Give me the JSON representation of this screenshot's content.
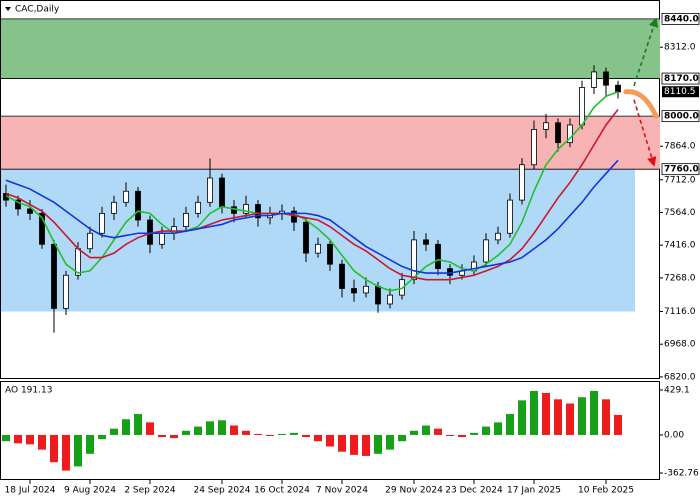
{
  "chart_data": {
    "type": "candlestick",
    "title": "CAC,Daily",
    "ylim": [
      6815,
      8521
    ],
    "yticks": [
      {
        "value": 8312,
        "label": "8312.0"
      },
      {
        "value": 7864,
        "label": "7864.0"
      },
      {
        "value": 7712,
        "label": "7712.0"
      },
      {
        "value": 7564,
        "label": "7564.0"
      },
      {
        "value": 7416,
        "label": "7416.0"
      },
      {
        "value": 7268,
        "label": "7268.0"
      },
      {
        "value": 7116,
        "label": "7116.0"
      },
      {
        "value": 6968,
        "label": "6968.0"
      },
      {
        "value": 6820,
        "label": "6820.0"
      }
    ],
    "levels": [
      {
        "value": 8440,
        "label": "8440.0"
      },
      {
        "value": 8170,
        "label": "8170.0"
      },
      {
        "value": 8000,
        "label": "8000.0"
      },
      {
        "value": 7760,
        "label": "7760.0"
      }
    ],
    "current_price": {
      "value": 8110.5,
      "label": "8110.5"
    },
    "zones": [
      {
        "from": 8170,
        "to": 8440,
        "color": "#86c38b"
      },
      {
        "from": 7760,
        "to": 8000,
        "color": "#f8b4b4"
      },
      {
        "from": 7116,
        "to": 7760,
        "color": "#b0d9f8"
      }
    ],
    "categories": [
      null,
      null,
      "18 Jul 2024",
      null,
      null,
      null,
      null,
      "9 Aug 2024",
      null,
      null,
      null,
      null,
      "2 Sep 2024",
      null,
      null,
      null,
      null,
      null,
      "24 Sep 2024",
      null,
      null,
      null,
      null,
      "16 Oct 2024",
      null,
      null,
      null,
      null,
      "7 Nov 2024",
      null,
      null,
      null,
      null,
      null,
      "29 Nov 2024",
      null,
      null,
      null,
      null,
      "23 Dec 2024",
      null,
      null,
      null,
      null,
      "17 Jan 2025",
      null,
      null,
      null,
      null,
      null,
      "10 Feb 2025",
      null
    ],
    "ohlc": [
      [
        7650,
        7690,
        7590,
        7620
      ],
      [
        7620,
        7640,
        7550,
        7580
      ],
      [
        7580,
        7620,
        7530,
        7560
      ],
      [
        7560,
        7580,
        7400,
        7420
      ],
      [
        7420,
        7440,
        7020,
        7130
      ],
      [
        7130,
        7300,
        7100,
        7280
      ],
      [
        7280,
        7430,
        7260,
        7400
      ],
      [
        7400,
        7500,
        7380,
        7470
      ],
      [
        7470,
        7590,
        7450,
        7560
      ],
      [
        7560,
        7640,
        7530,
        7610
      ],
      [
        7610,
        7700,
        7590,
        7660
      ],
      [
        7660,
        7680,
        7500,
        7530
      ],
      [
        7530,
        7550,
        7380,
        7420
      ],
      [
        7420,
        7500,
        7400,
        7470
      ],
      [
        7470,
        7540,
        7440,
        7500
      ],
      [
        7500,
        7590,
        7480,
        7560
      ],
      [
        7560,
        7640,
        7540,
        7610
      ],
      [
        7610,
        7808,
        7590,
        7720
      ],
      [
        7720,
        7740,
        7560,
        7590
      ],
      [
        7590,
        7620,
        7520,
        7560
      ],
      [
        7560,
        7640,
        7540,
        7600
      ],
      [
        7600,
        7620,
        7500,
        7540
      ],
      [
        7540,
        7590,
        7510,
        7560
      ],
      [
        7560,
        7600,
        7530,
        7570
      ],
      [
        7570,
        7590,
        7480,
        7520
      ],
      [
        7520,
        7540,
        7340,
        7380
      ],
      [
        7380,
        7450,
        7360,
        7420
      ],
      [
        7420,
        7440,
        7300,
        7330
      ],
      [
        7330,
        7350,
        7180,
        7220
      ],
      [
        7220,
        7260,
        7160,
        7200
      ],
      [
        7200,
        7270,
        7180,
        7230
      ],
      [
        7230,
        7250,
        7110,
        7150
      ],
      [
        7150,
        7220,
        7130,
        7190
      ],
      [
        7190,
        7290,
        7170,
        7260
      ],
      [
        7260,
        7480,
        7240,
        7440
      ],
      [
        7440,
        7470,
        7390,
        7420
      ],
      [
        7420,
        7440,
        7280,
        7310
      ],
      [
        7310,
        7330,
        7240,
        7280
      ],
      [
        7280,
        7330,
        7260,
        7300
      ],
      [
        7300,
        7370,
        7280,
        7340
      ],
      [
        7340,
        7470,
        7320,
        7440
      ],
      [
        7440,
        7500,
        7420,
        7470
      ],
      [
        7470,
        7650,
        7450,
        7620
      ],
      [
        7620,
        7810,
        7600,
        7780
      ],
      [
        7780,
        7980,
        7760,
        7940
      ],
      [
        7940,
        8010,
        7900,
        7970
      ],
      [
        7970,
        7990,
        7840,
        7880
      ],
      [
        7880,
        7990,
        7860,
        7960
      ],
      [
        7960,
        8160,
        7940,
        8130
      ],
      [
        8130,
        8230,
        8100,
        8200
      ],
      [
        8200,
        8220,
        8090,
        8140
      ],
      [
        8140,
        8160,
        8080,
        8110
      ]
    ],
    "series": [
      {
        "color": "#22c02a",
        "values": [
          7640,
          7610,
          7590,
          7540,
          7430,
          7330,
          7290,
          7300,
          7360,
          7440,
          7520,
          7570,
          7560,
          7510,
          7470,
          7480,
          7500,
          7560,
          7590,
          7580,
          7570,
          7560,
          7560,
          7560,
          7560,
          7530,
          7490,
          7440,
          7370,
          7300,
          7260,
          7230,
          7210,
          7220,
          7270,
          7320,
          7350,
          7340,
          7310,
          7300,
          7330,
          7370,
          7420,
          7520,
          7660,
          7780,
          7850,
          7900,
          7960,
          8040,
          8090,
          8110
        ]
      },
      {
        "color": "#c8192e",
        "values": [
          7650,
          7630,
          7600,
          7570,
          7520,
          7460,
          7400,
          7360,
          7360,
          7380,
          7420,
          7450,
          7470,
          7480,
          7480,
          7480,
          7490,
          7510,
          7530,
          7540,
          7550,
          7560,
          7560,
          7560,
          7550,
          7540,
          7530,
          7500,
          7460,
          7420,
          7390,
          7350,
          7310,
          7280,
          7270,
          7260,
          7260,
          7260,
          7270,
          7280,
          7300,
          7320,
          7350,
          7400,
          7470,
          7550,
          7630,
          7700,
          7780,
          7870,
          7960,
          8030
        ]
      },
      {
        "color": "#1436d8",
        "values": [
          7710,
          7690,
          7670,
          7640,
          7610,
          7570,
          7530,
          7490,
          7460,
          7450,
          7460,
          7470,
          7470,
          7470,
          7470,
          7480,
          7490,
          7500,
          7510,
          7530,
          7540,
          7550,
          7550,
          7560,
          7560,
          7560,
          7550,
          7530,
          7490,
          7450,
          7410,
          7380,
          7350,
          7320,
          7300,
          7290,
          7290,
          7290,
          7300,
          7310,
          7320,
          7330,
          7340,
          7360,
          7400,
          7440,
          7490,
          7550,
          7610,
          7680,
          7740,
          7800
        ]
      }
    ],
    "ao": {
      "title": "AO 191.13",
      "ylim": [
        -420,
        505
      ],
      "yticks": [
        {
          "value": 429.1,
          "label": "429.1"
        },
        {
          "value": 0,
          "label": "0.00"
        },
        {
          "value": -362.76,
          "label": "-362.76"
        }
      ],
      "up_color": "#18a018",
      "down_color": "#ee1c1c",
      "values": [
        -60,
        -80,
        -90,
        -140,
        -260,
        -340,
        -300,
        -180,
        -40,
        60,
        150,
        200,
        120,
        -20,
        -30,
        40,
        80,
        130,
        140,
        90,
        40,
        10,
        -10,
        10,
        20,
        -20,
        -60,
        -110,
        -160,
        -190,
        -200,
        -180,
        -140,
        -60,
        40,
        90,
        60,
        -10,
        -20,
        20,
        80,
        120,
        200,
        330,
        420,
        400,
        340,
        300,
        360,
        420,
        340,
        191.13
      ]
    }
  }
}
